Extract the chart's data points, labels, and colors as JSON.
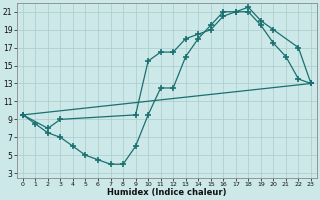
{
  "xlabel": "Humidex (Indice chaleur)",
  "xlim": [
    -0.5,
    23.5
  ],
  "ylim": [
    2.5,
    22
  ],
  "xticks": [
    0,
    1,
    2,
    3,
    4,
    5,
    6,
    7,
    8,
    9,
    10,
    11,
    12,
    13,
    14,
    15,
    16,
    17,
    18,
    19,
    20,
    21,
    22,
    23
  ],
  "yticks": [
    3,
    5,
    7,
    9,
    11,
    13,
    15,
    17,
    19,
    21
  ],
  "bg_color": "#cce8e8",
  "line_color": "#1a7070",
  "line1_x": [
    0,
    1,
    2,
    3,
    4,
    5,
    6,
    7,
    8,
    9,
    10,
    11,
    12,
    13,
    14,
    15,
    16,
    17,
    18,
    19,
    20,
    21,
    22,
    23
  ],
  "line1_y": [
    9.5,
    8.5,
    7.5,
    7.0,
    6.0,
    5.0,
    4.5,
    4.0,
    4.0,
    6.0,
    9.5,
    12.5,
    12.5,
    16.0,
    18.0,
    19.5,
    21.0,
    21.0,
    21.0,
    19.5,
    17.5,
    16.0,
    13.5,
    13.0
  ],
  "line2_x": [
    0,
    2,
    3,
    9,
    10,
    11,
    12,
    13,
    14,
    15,
    16,
    17,
    18,
    19,
    20,
    22,
    23
  ],
  "line2_y": [
    9.5,
    8.0,
    9.0,
    9.5,
    15.5,
    16.5,
    16.5,
    18.0,
    18.5,
    19.0,
    20.5,
    21.0,
    21.5,
    20.0,
    19.0,
    17.0,
    13.0
  ],
  "line3_x": [
    0,
    23
  ],
  "line3_y": [
    9.5,
    13.0
  ]
}
